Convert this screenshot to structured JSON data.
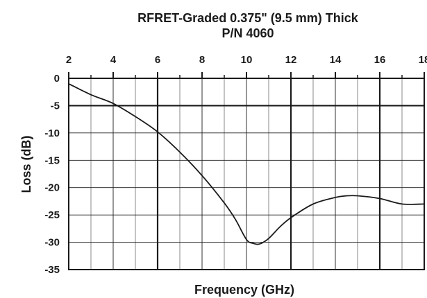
{
  "chart_data": {
    "type": "line",
    "title": "RFRET-Graded 0.375\" (9.5 mm) Thick",
    "subtitle": "P/N 4060",
    "xlabel": "Frequency (GHz)",
    "ylabel": "Loss (dB)",
    "xlim": [
      2,
      18
    ],
    "ylim": [
      -35,
      0
    ],
    "x_ticks": [
      2,
      4,
      6,
      8,
      10,
      12,
      14,
      16,
      18
    ],
    "y_ticks": [
      0,
      -5,
      -10,
      -15,
      -20,
      -25,
      -30,
      -35
    ],
    "x_tick_labels": [
      "2",
      "4",
      "6",
      "8",
      "10",
      "12",
      "14",
      "16",
      "18"
    ],
    "y_tick_labels": [
      "0",
      "-5",
      "-10",
      "-15",
      "-20",
      "-25",
      "-30",
      "-35"
    ],
    "x_axis_position": "top",
    "grid": true,
    "series": [
      {
        "x": [
          2,
          3,
          4,
          5,
          6,
          7,
          8,
          9,
          9.5,
          10,
          10.3,
          10.6,
          11,
          11.5,
          12,
          13,
          14,
          14.5,
          15,
          16,
          17,
          18
        ],
        "y": [
          -1,
          -3,
          -4.6,
          -7,
          -9.8,
          -13.5,
          -17.8,
          -22.8,
          -25.8,
          -29.5,
          -30.2,
          -30.3,
          -29.3,
          -27.2,
          -25.5,
          -23,
          -21.8,
          -21.5,
          -21.5,
          -22,
          -23,
          -23
        ]
      }
    ]
  }
}
